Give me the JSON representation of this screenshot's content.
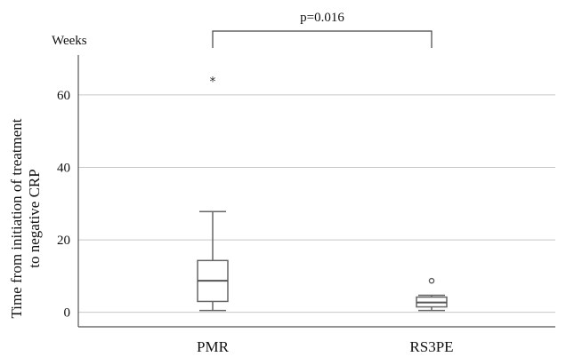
{
  "chart_data": {
    "type": "boxplot",
    "y_unit_label": "Weeks",
    "ylabel_lines": [
      "Time from initiation of treatment",
      "to negative CRP"
    ],
    "ylim": [
      -4,
      71
    ],
    "yticks": [
      0,
      20,
      40,
      60
    ],
    "grid": true,
    "categories": [
      "PMR",
      "RS3PE"
    ],
    "boxes": [
      {
        "name": "PMR",
        "whisker_low": 0.5,
        "q1": 3,
        "median": 8.7,
        "q3": 14.3,
        "whisker_high": 27.8,
        "outliers": [],
        "extremes": [
          63.8
        ]
      },
      {
        "name": "RS3PE",
        "whisker_low": 0.5,
        "q1": 1.5,
        "median": 2.7,
        "q3": 4.2,
        "whisker_high": 4.7,
        "outliers": [
          8.7
        ],
        "extremes": []
      }
    ],
    "annotation": {
      "text": "p=0.016",
      "between": [
        "PMR",
        "RS3PE"
      ]
    }
  }
}
